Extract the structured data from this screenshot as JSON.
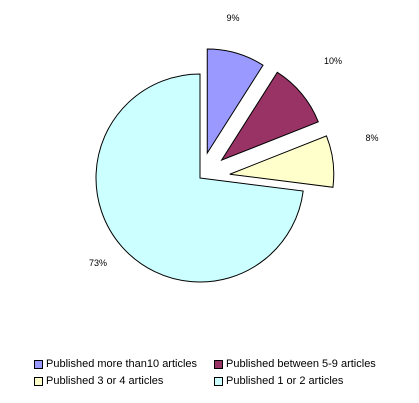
{
  "chart_data": {
    "type": "pie",
    "title": "",
    "exploded": true,
    "categories": [
      "Published more than10 articles",
      "Published between 5-9 articles",
      "Published 3 or 4 articles",
      "Published 1 or 2 articles"
    ],
    "values": [
      9,
      10,
      8,
      73
    ],
    "labels": [
      "9%",
      "10%",
      "8%",
      "73%"
    ],
    "colors": [
      "#9999FF",
      "#993366",
      "#FFFFCC",
      "#CCFFFF"
    ],
    "legend_position": "bottom"
  }
}
